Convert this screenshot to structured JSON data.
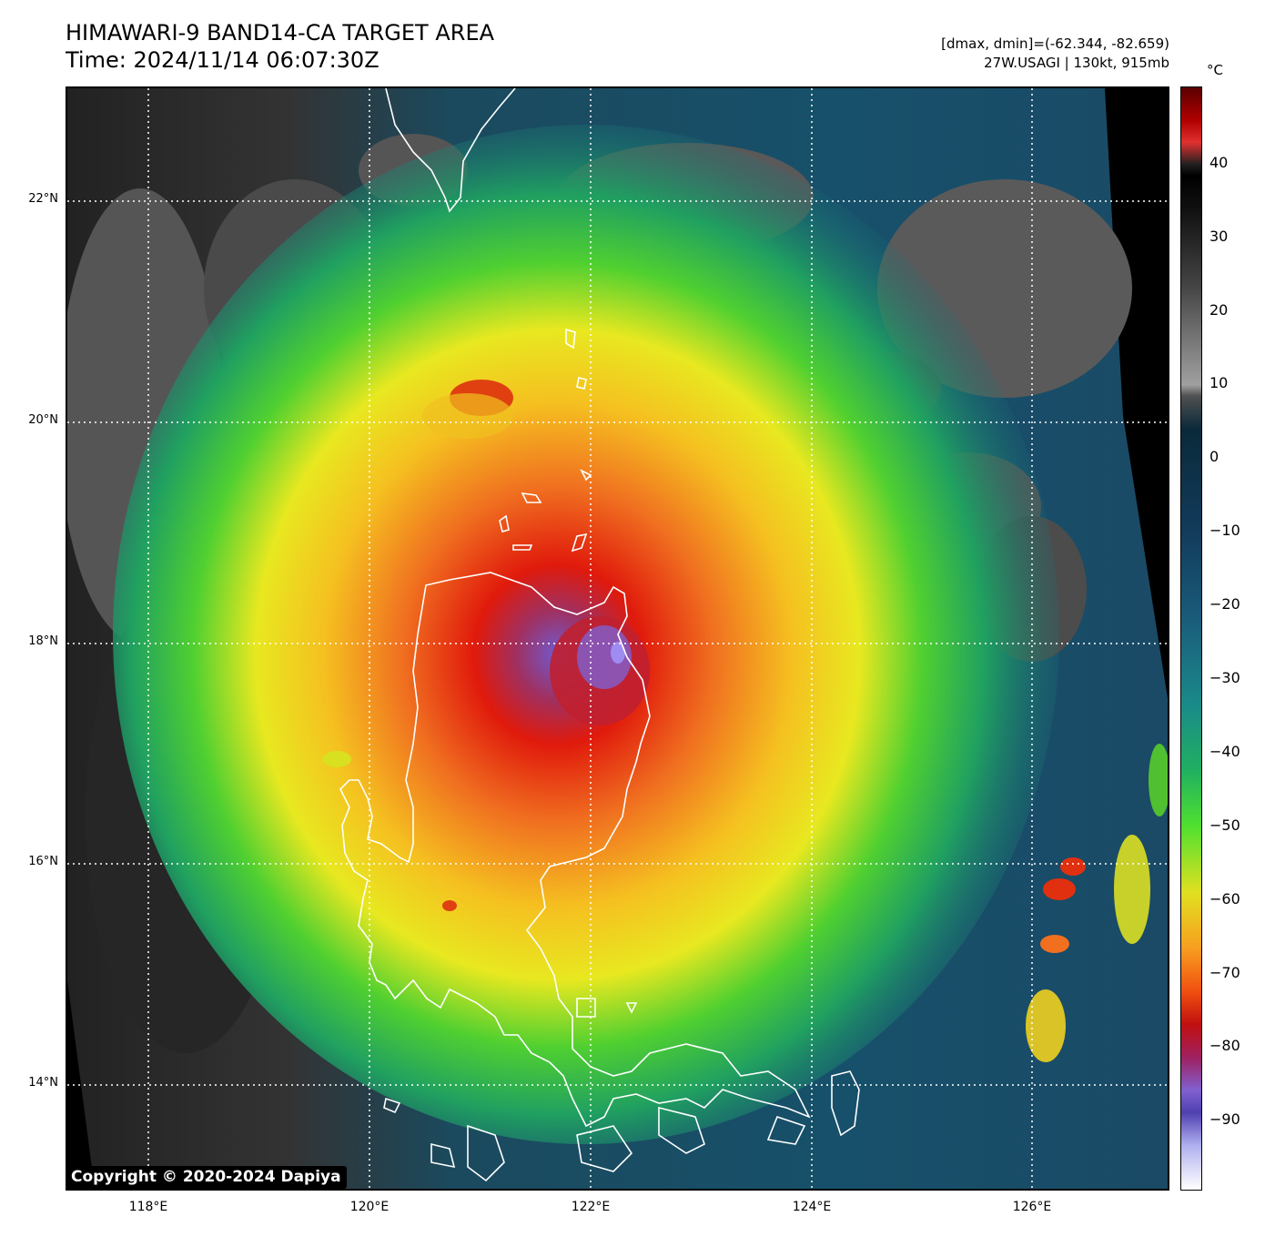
{
  "header": {
    "title_line1": "HIMAWARI-9 BAND14-CA TARGET AREA",
    "title_line2": "Time: 2024/11/14 06:07:30Z",
    "meta_line1": "[dmax, dmin]=(-62.344, -82.659)",
    "meta_line2": "27W.USAGI | 130kt, 915mb"
  },
  "map": {
    "lat_labels": [
      "22°N",
      "20°N",
      "18°N",
      "16°N",
      "14°N"
    ],
    "lon_labels": [
      "118°E",
      "120°E",
      "122°E",
      "124°E",
      "126°E"
    ],
    "storm_name": "27W.USAGI",
    "colors": {
      "eye": "#7a5fd0",
      "core": "#e02010",
      "inner_band": "#f08018",
      "outer_band": "#f0e020",
      "green_band": "#40d020",
      "teal": "#1a8a8a",
      "ocean_blue": "#144a6a",
      "gray_cloud": "#555555",
      "dark_land": "#202020",
      "coastline": "#ffffff"
    }
  },
  "colorbar": {
    "unit": "°C",
    "tick_labels": [
      "40",
      "30",
      "20",
      "10",
      "0",
      "−10",
      "−20",
      "−30",
      "−40",
      "−50",
      "−60",
      "−70",
      "−80",
      "−90"
    ]
  },
  "footer": {
    "copyright": "Copyright © 2020-2024 Dapiya"
  }
}
